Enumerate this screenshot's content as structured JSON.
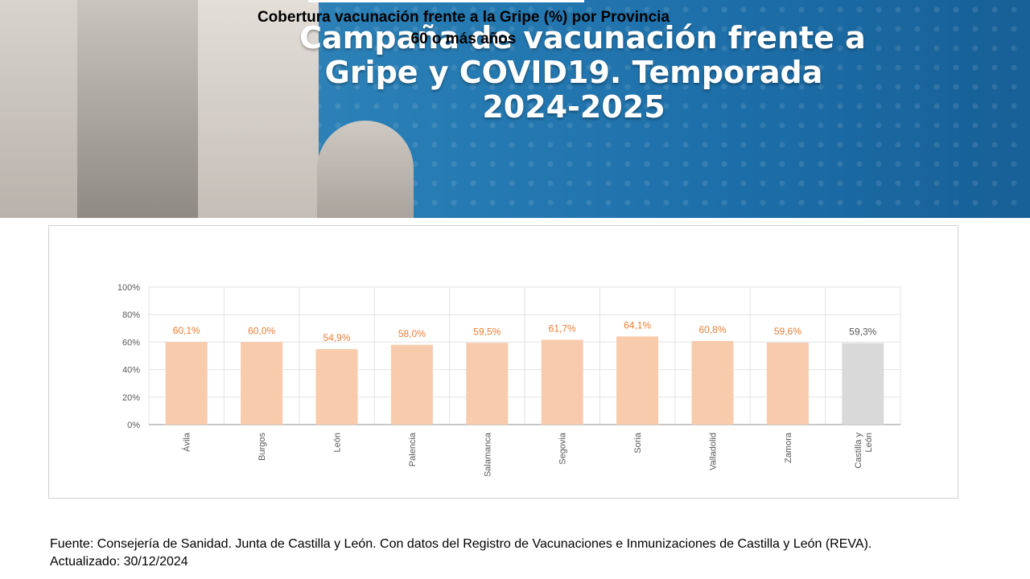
{
  "banner": {
    "title_line1": "Campaña de vacunación frente a",
    "title_line2": "Gripe y COVID19. Temporada",
    "title_line3": "2024-2025"
  },
  "chart_data": {
    "type": "bar",
    "title": "Cobertura vacunación frente a la Gripe (%) por Provincia",
    "subtitle": "60 o más años",
    "xlabel": "",
    "ylabel": "",
    "ylim": [
      0,
      100
    ],
    "yticks": [
      "0%",
      "20%",
      "40%",
      "60%",
      "80%",
      "100%"
    ],
    "ytick_values": [
      0,
      20,
      40,
      60,
      80,
      100
    ],
    "grid": true,
    "categories": [
      "Ávila",
      "Burgos",
      "León",
      "Palencia",
      "Salamanca",
      "Segovia",
      "Soria",
      "Valladolid",
      "Zamora",
      "Castilla y León"
    ],
    "category_lines": [
      [
        "Ávila"
      ],
      [
        "Burgos"
      ],
      [
        "León"
      ],
      [
        "Palencia"
      ],
      [
        "Salamanca"
      ],
      [
        "Segovia"
      ],
      [
        "Soria"
      ],
      [
        "Valladolid"
      ],
      [
        "Zamora"
      ],
      [
        "Castilla y",
        "León"
      ]
    ],
    "values": [
      60.1,
      60.0,
      54.9,
      58.0,
      59.5,
      61.7,
      64.1,
      60.8,
      59.6,
      59.3
    ],
    "labels": [
      "60,1%",
      "60,0%",
      "54,9%",
      "58,0%",
      "59,5%",
      "61,7%",
      "64,1%",
      "60,8%",
      "59,6%",
      "59,3%"
    ],
    "colors": {
      "bar": "#f8cbad",
      "highlight_bar": "#d9d9d9",
      "label": "#ed7d31",
      "highlight_label": "#595959"
    },
    "highlight_index": 9
  },
  "source": {
    "line1": "Fuente: Consejería de Sanidad. Junta de Castilla y León. Con datos del Registro de Vacunaciones e Inmunizaciones  de Castilla y León (REVA).",
    "line2": "Actualizado: 30/12/2024"
  }
}
